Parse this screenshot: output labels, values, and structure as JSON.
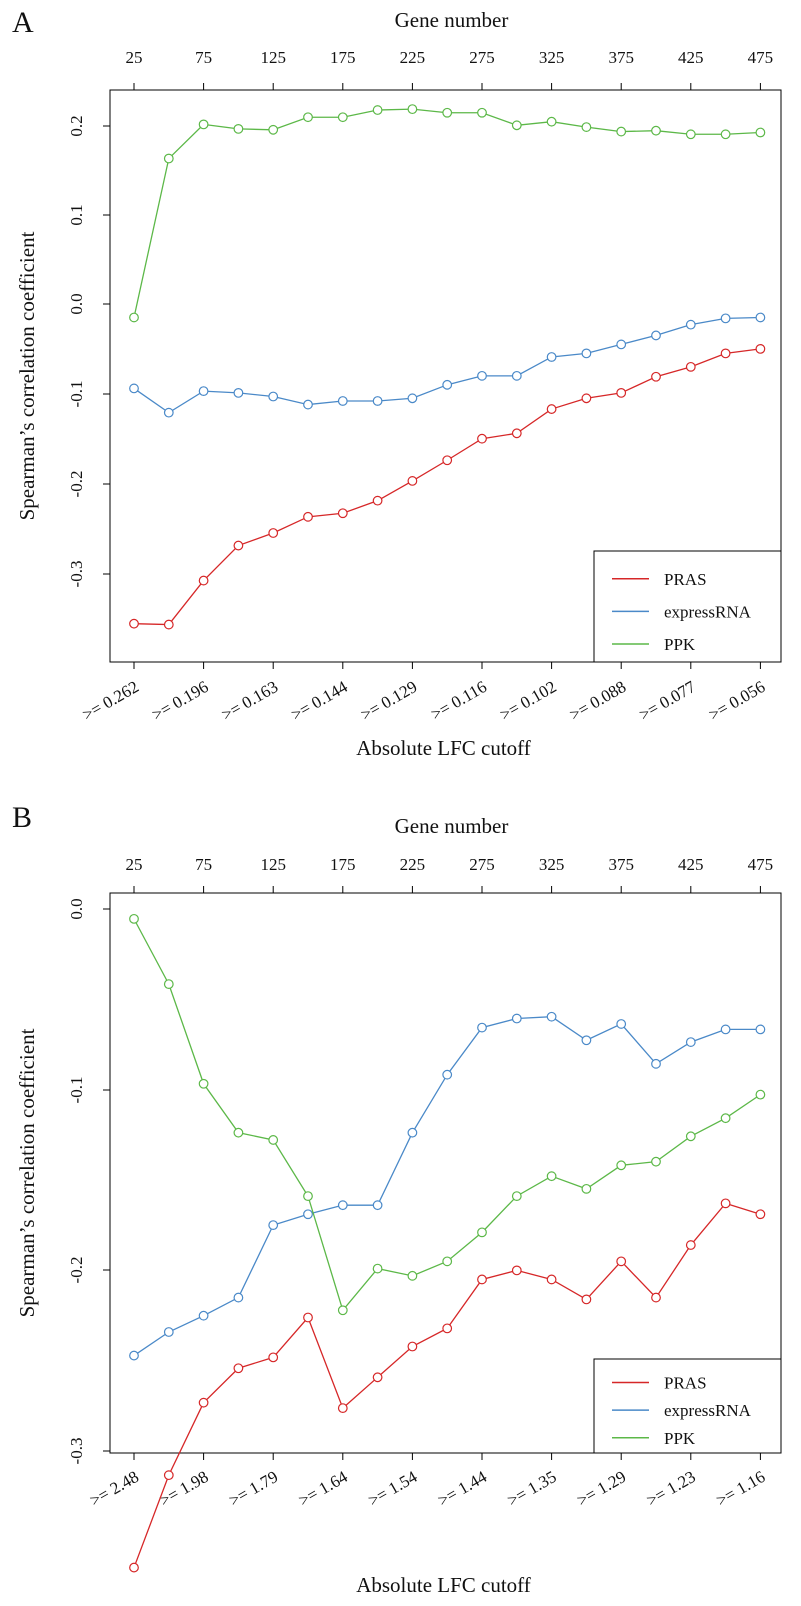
{
  "colors": {
    "PRAS": "#d62728",
    "expressRNA": "#4a89c8",
    "PPK": "#5cb848"
  },
  "chart_data": [
    {
      "type": "line",
      "panel_label": "A",
      "top_axis": {
        "label": "Gene number",
        "ticks": [
          "25",
          "75",
          "125",
          "175",
          "225",
          "275",
          "325",
          "375",
          "425",
          "475"
        ]
      },
      "xlabel": "Absolute LFC cutoff",
      "ylabel": "Spearman’s correlation coefficient",
      "x_gene_number": [
        25,
        50,
        75,
        100,
        125,
        150,
        175,
        200,
        225,
        250,
        275,
        300,
        325,
        350,
        375,
        400,
        425,
        450,
        475
      ],
      "bottom_ticks": [
        ">= 0.262",
        ">= 0.196",
        ">= 0.163",
        ">= 0.144",
        ">= 0.129",
        ">= 0.116",
        ">= 0.102",
        ">= 0.088",
        ">= 0.077",
        ">= 0.056"
      ],
      "y_ticks": [
        "0.2",
        "0.1",
        "0.0",
        "-0.1",
        "-0.2",
        "-0.3"
      ],
      "ylim": [
        -0.36,
        0.24
      ],
      "legend_position": "bottom-right",
      "grid": false,
      "series": [
        {
          "name": "PRAS",
          "values": [
            -0.356,
            -0.357,
            -0.308,
            -0.269,
            -0.255,
            -0.237,
            -0.233,
            -0.219,
            -0.197,
            -0.174,
            -0.15,
            -0.144,
            -0.117,
            -0.105,
            -0.099,
            -0.081,
            -0.07,
            -0.055,
            -0.05
          ]
        },
        {
          "name": "expressRNA",
          "values": [
            -0.094,
            -0.121,
            -0.097,
            -0.099,
            -0.103,
            -0.112,
            -0.108,
            -0.108,
            -0.105,
            -0.09,
            -0.08,
            -0.08,
            -0.059,
            -0.055,
            -0.045,
            -0.035,
            -0.023,
            -0.016,
            -0.015
          ]
        },
        {
          "name": "PPK",
          "values": [
            -0.015,
            0.162,
            0.2,
            0.195,
            0.194,
            0.208,
            0.208,
            0.216,
            0.217,
            0.213,
            0.213,
            0.199,
            0.203,
            0.197,
            0.192,
            0.193,
            0.189,
            0.189,
            0.191
          ]
        }
      ]
    },
    {
      "type": "line",
      "panel_label": "B",
      "top_axis": {
        "label": "Gene number",
        "ticks": [
          "25",
          "75",
          "125",
          "175",
          "225",
          "275",
          "325",
          "375",
          "425",
          "475"
        ]
      },
      "xlabel": "Absolute LFC cutoff",
      "ylabel": "Spearman’s correlation coefficient",
      "x_gene_number": [
        25,
        50,
        75,
        100,
        125,
        150,
        175,
        200,
        225,
        250,
        275,
        300,
        325,
        350,
        375,
        400,
        425,
        450,
        475
      ],
      "bottom_ticks": [
        ">= 2.48",
        ">= 1.98",
        ">= 1.79",
        ">= 1.64",
        ">= 1.54",
        ">= 1.44",
        ">= 1.35",
        ">= 1.29",
        ">= 1.23",
        ">= 1.16"
      ],
      "y_ticks": [
        "0.0",
        "-0.1",
        "-0.2",
        "-0.3"
      ],
      "ylim": [
        -0.37,
        0.005
      ],
      "legend_position": "bottom-right",
      "grid": false,
      "series": [
        {
          "name": "PRAS",
          "values": [
            -0.364,
            -0.313,
            -0.273,
            -0.254,
            -0.248,
            -0.226,
            -0.276,
            -0.259,
            -0.242,
            -0.232,
            -0.205,
            -0.2,
            -0.205,
            -0.216,
            -0.195,
            -0.215,
            -0.186,
            -0.163,
            -0.169
          ]
        },
        {
          "name": "expressRNA",
          "values": [
            -0.247,
            -0.234,
            -0.225,
            -0.215,
            -0.175,
            -0.169,
            -0.164,
            -0.164,
            -0.124,
            -0.092,
            -0.066,
            -0.061,
            -0.06,
            -0.073,
            -0.064,
            -0.086,
            -0.074,
            -0.067,
            -0.067
          ]
        },
        {
          "name": "PPK",
          "values": [
            -0.006,
            -0.042,
            -0.097,
            -0.124,
            -0.128,
            -0.159,
            -0.222,
            -0.199,
            -0.203,
            -0.195,
            -0.179,
            -0.159,
            -0.148,
            -0.155,
            -0.142,
            -0.14,
            -0.126,
            -0.116,
            -0.103
          ]
        }
      ]
    }
  ]
}
